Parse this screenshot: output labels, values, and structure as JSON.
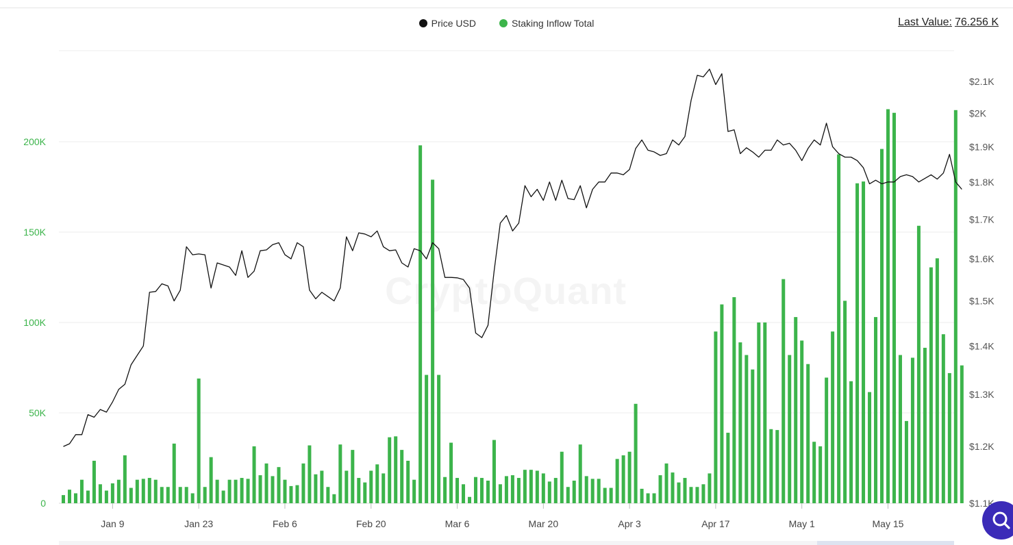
{
  "legend": {
    "price_label": "Price USD",
    "inflow_label": "Staking Inflow Total",
    "price_color": "#111111",
    "inflow_color": "#3cb44b"
  },
  "last_value": {
    "label": "Last Value:",
    "value": "76.256 K"
  },
  "watermark": "CryptoQuant",
  "help_button_icon": "search-chat-icon",
  "chart_data": {
    "type": "bar",
    "title": "",
    "grid": true,
    "legend_position": "top-center",
    "x_ticks": [
      "Jan 9",
      "Jan 23",
      "Feb 6",
      "Feb 20",
      "Mar 6",
      "Mar 20",
      "Apr 3",
      "Apr 17",
      "May 1",
      "May 15"
    ],
    "x_tick_day_index": [
      8,
      22,
      36,
      50,
      64,
      78,
      92,
      106,
      120,
      134
    ],
    "left_axis": {
      "ticks": [
        "0",
        "50K",
        "100K",
        "150K",
        "200K"
      ],
      "tick_values": [
        0,
        50000,
        100000,
        150000,
        200000
      ],
      "range": [
        0,
        250000
      ]
    },
    "right_axis": {
      "ticks": [
        "$1.1K",
        "$1.2K",
        "$1.3K",
        "$1.4K",
        "$1.5K",
        "$1.6K",
        "$1.7K",
        "$1.8K",
        "$1.9K",
        "$2K",
        "$2.1K"
      ],
      "tick_values": [
        1100,
        1200,
        1300,
        1400,
        1500,
        1600,
        1700,
        1800,
        1900,
        2000,
        2100
      ],
      "scale": "log",
      "range": [
        1100,
        2180
      ]
    },
    "series": [
      {
        "name": "Staking Inflow Total",
        "type": "bar",
        "axis": "left",
        "color": "#3cb44b",
        "values": [
          4500,
          7500,
          5500,
          13000,
          7000,
          23500,
          10500,
          7000,
          11000,
          13000,
          26500,
          8500,
          13000,
          13500,
          14000,
          13000,
          9000,
          9000,
          33000,
          9000,
          9000,
          5500,
          69000,
          9000,
          25500,
          13000,
          7000,
          13000,
          13000,
          14000,
          13500,
          31500,
          15500,
          22000,
          15000,
          20000,
          13000,
          9500,
          10000,
          22000,
          32000,
          16000,
          18000,
          9000,
          5000,
          32500,
          18000,
          29500,
          14000,
          11500,
          18000,
          21500,
          16500,
          36500,
          37000,
          29500,
          23500,
          13000,
          198000,
          71000,
          179000,
          71000,
          14500,
          33500,
          14000,
          10500,
          3500,
          14500,
          14000,
          12500,
          35000,
          10500,
          15000,
          15500,
          14000,
          18500,
          18500,
          18000,
          16500,
          12000,
          14000,
          28500,
          9000,
          12500,
          32500,
          15000,
          13500,
          13500,
          8500,
          8500,
          24500,
          26500,
          28500,
          55000,
          8000,
          5500,
          5500,
          15500,
          22000,
          17000,
          11500,
          14000,
          9000,
          9000,
          10500,
          16500,
          95000,
          110000,
          39000,
          114000,
          89000,
          82000,
          74000,
          100000,
          100000,
          41000,
          40500,
          124000,
          82000,
          103000,
          90000,
          77000,
          34000,
          31500,
          69500,
          95000,
          193000,
          112000,
          67500,
          177000,
          178000,
          61500,
          103000,
          196000,
          218000,
          216000,
          82000,
          45500,
          80500,
          153500,
          86000,
          130500,
          135500,
          93500,
          72000,
          217500,
          76256
        ]
      },
      {
        "name": "Price USD",
        "type": "line",
        "axis": "right",
        "color": "#111111",
        "values": [
          1200,
          1205,
          1222,
          1222,
          1260,
          1255,
          1270,
          1265,
          1285,
          1310,
          1320,
          1360,
          1380,
          1400,
          1520,
          1522,
          1540,
          1535,
          1500,
          1525,
          1630,
          1610,
          1612,
          1610,
          1530,
          1590,
          1585,
          1580,
          1560,
          1620,
          1555,
          1570,
          1620,
          1622,
          1635,
          1640,
          1610,
          1600,
          1640,
          1630,
          1525,
          1505,
          1520,
          1510,
          1500,
          1530,
          1655,
          1620,
          1665,
          1662,
          1655,
          1670,
          1630,
          1620,
          1622,
          1590,
          1580,
          1625,
          1620,
          1600,
          1640,
          1625,
          1555,
          1555,
          1554,
          1550,
          1530,
          1428,
          1418,
          1445,
          1570,
          1690,
          1710,
          1670,
          1690,
          1790,
          1760,
          1780,
          1750,
          1800,
          1750,
          1805,
          1755,
          1752,
          1790,
          1730,
          1780,
          1800,
          1800,
          1825,
          1825,
          1820,
          1835,
          1895,
          1920,
          1890,
          1885,
          1875,
          1880,
          1920,
          1905,
          1930,
          2040,
          2120,
          2115,
          2140,
          2090,
          2125,
          1945,
          1950,
          1880,
          1897,
          1885,
          1870,
          1890,
          1890,
          1920,
          1905,
          1910,
          1890,
          1860,
          1895,
          1920,
          1905,
          1970,
          1900,
          1880,
          1870,
          1870,
          1860,
          1840,
          1795,
          1805,
          1795,
          1800,
          1800,
          1815,
          1820,
          1815,
          1800,
          1810,
          1820,
          1808,
          1825,
          1878,
          1800,
          1780
        ]
      }
    ]
  }
}
